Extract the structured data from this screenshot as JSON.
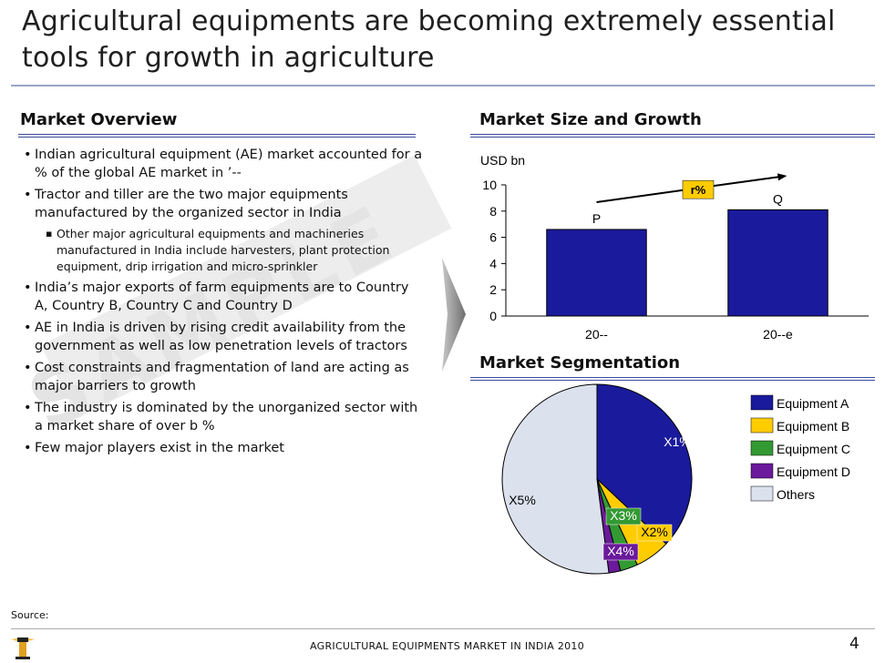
{
  "title": "Agricultural equipments are becoming extremely essential tools for growth in agriculture",
  "watermark": "SAMPLE",
  "market_overview": {
    "heading": "Market Overview",
    "bullets": [
      {
        "level": 1,
        "text": "Indian agricultural equipment (AE) market accounted for a % of the global AE market in ’--"
      },
      {
        "level": 1,
        "text": "Tractor and tiller are the two major equipments manufactured by the organized sector in India"
      },
      {
        "level": 2,
        "text": "Other major agricultural equipments and machineries manufactured in India include harvesters, plant protection equipment, drip irrigation and micro-sprinkler"
      },
      {
        "level": 1,
        "text": "India’s major exports of  farm equipments are to Country A, Country B, Country C and Country D"
      },
      {
        "level": 1,
        "text": "AE in India is driven by rising credit availability from the government as well as low penetration levels of tractors"
      },
      {
        "level": 1,
        "text": "Cost constraints and fragmentation of land are acting as major barriers to growth"
      },
      {
        "level": 1,
        "text": "The industry is dominated by the unorganized sector with a market share of over b %"
      },
      {
        "level": 1,
        "text": "Few major players exist in the market"
      }
    ]
  },
  "market_size": {
    "heading": "Market Size and Growth"
  },
  "market_segmentation": {
    "heading": "Market Segmentation"
  },
  "chart_data": [
    {
      "type": "bar",
      "ylabel": "USD bn",
      "categories": [
        "20--",
        "20--e"
      ],
      "values": [
        6.6,
        8.1
      ],
      "data_labels": [
        "P",
        "Q"
      ],
      "ylim": [
        0,
        10
      ],
      "yticks": [
        0,
        2,
        4,
        6,
        8,
        10
      ],
      "growth_label": "r%",
      "bar_color": "#1a1a9c",
      "grid": false
    },
    {
      "type": "pie",
      "slices": [
        {
          "name": "Equipment A",
          "label": "X1%",
          "value": 37,
          "color": "#1a1a9c"
        },
        {
          "name": "Equipment B",
          "label": "X2%",
          "value": 6,
          "color": "#ffcc00"
        },
        {
          "name": "Equipment C",
          "label": "X3%",
          "value": 3,
          "color": "#339933"
        },
        {
          "name": "Equipment D",
          "label": "X4%",
          "value": 2,
          "color": "#6a1a9a"
        },
        {
          "name": "Others",
          "label": "X5%",
          "value": 52,
          "color": "#dce1ee"
        }
      ],
      "legend_position": "right"
    }
  ],
  "footer": {
    "source": "Source:",
    "report_title": "AGRICULTURAL EQUIPMENTS MARKET IN INDIA 2010",
    "page_number": "4"
  },
  "colors": {
    "accent": "#3a4aa0",
    "bar": "#1a1a9c",
    "arrow": "#8c8c8c"
  }
}
